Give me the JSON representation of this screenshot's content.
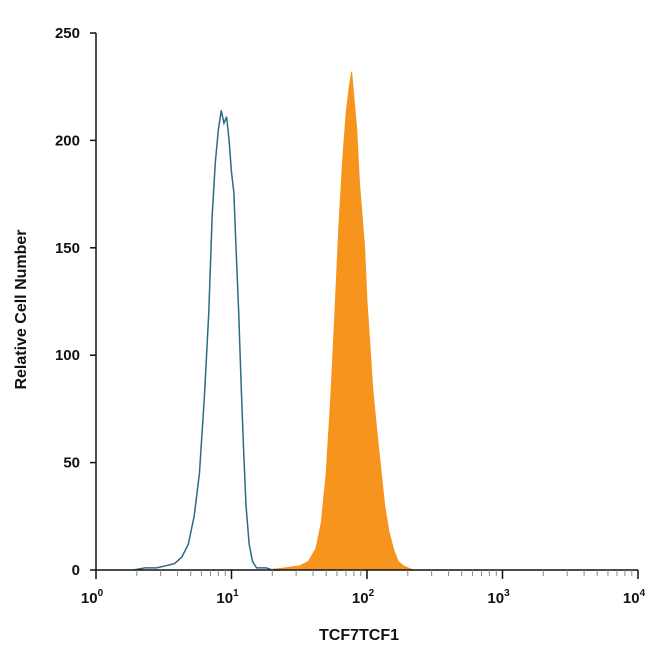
{
  "chart_data": {
    "type": "area",
    "xlabel": "TCF7TCF1",
    "ylabel": "Relative Cell Number",
    "x_scale": "log",
    "xlim": [
      1,
      10000
    ],
    "ylim": [
      0,
      250
    ],
    "y_ticks": [
      0,
      50,
      100,
      150,
      200,
      250
    ],
    "y_tick_labels": [
      "0",
      "50",
      "100",
      "150",
      "200",
      "250"
    ],
    "x_ticks": [
      {
        "value": 1,
        "base": "10",
        "exp": "0"
      },
      {
        "value": 10,
        "base": "10",
        "exp": "1"
      },
      {
        "value": 100,
        "base": "10",
        "exp": "2"
      },
      {
        "value": 1000,
        "base": "10",
        "exp": "3"
      },
      {
        "value": 10000,
        "base": "10",
        "exp": "4"
      }
    ],
    "grid": false,
    "series": [
      {
        "style": "outline",
        "color": "#2d6a86",
        "x": [
          1.9,
          2.3,
          2.8,
          3.3,
          3.8,
          4.3,
          4.8,
          5.3,
          5.8,
          6.3,
          6.8,
          7.2,
          7.6,
          8.0,
          8.4,
          8.8,
          9.2,
          9.6,
          10.0,
          10.4,
          10.8,
          11.3,
          11.8,
          12.3,
          12.8,
          13.5,
          14.3,
          15.3,
          16.5,
          18.0,
          20.0,
          23.0
        ],
        "y": [
          0,
          1,
          1,
          2,
          3,
          6,
          12,
          25,
          45,
          80,
          120,
          165,
          190,
          205,
          214,
          208,
          211,
          200,
          185,
          176,
          150,
          120,
          85,
          55,
          30,
          12,
          4,
          1,
          1,
          1,
          0,
          0
        ]
      },
      {
        "style": "filled",
        "color": "#f7941d",
        "x": [
          18,
          25,
          32,
          37,
          42,
          46,
          50,
          54,
          58,
          62,
          66,
          70,
          74,
          77,
          80,
          84,
          88,
          92,
          96,
          100,
          105,
          110,
          118,
          126,
          135,
          145,
          158,
          170,
          185,
          200,
          220
        ],
        "y": [
          0,
          1,
          2,
          4,
          10,
          22,
          45,
          80,
          120,
          160,
          190,
          212,
          225,
          232,
          220,
          205,
          180,
          165,
          150,
          125,
          105,
          85,
          65,
          48,
          30,
          18,
          9,
          4,
          2,
          1,
          0
        ]
      }
    ]
  }
}
